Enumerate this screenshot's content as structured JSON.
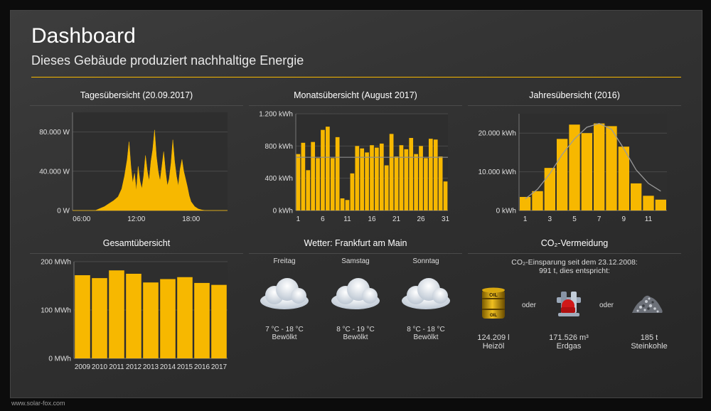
{
  "header": {
    "title": "Dashboard",
    "subtitle": "Dieses Gebäude produziert nachhaltige Energie"
  },
  "footer": {
    "url": "www.solar-fox.com"
  },
  "panels": {
    "daily": {
      "title": "Tagesübersicht (20.09.2017)"
    },
    "monthly": {
      "title": "Monatsübersicht (August 2017)"
    },
    "yearly": {
      "title": "Jahresübersicht (2016)"
    },
    "total": {
      "title": "Gesamtübersicht"
    },
    "weather": {
      "title": "Wetter: Frankfurt am Main"
    },
    "co2": {
      "title": "CO₂-Vermeidung"
    }
  },
  "chart_data": [
    {
      "id": "daily",
      "type": "area",
      "title": "Tagesübersicht (20.09.2017)",
      "color": "#f7b800",
      "x_ticks": [
        "06:00",
        "12:00",
        "18:00"
      ],
      "x_tick_hours": [
        6,
        12,
        18
      ],
      "xlim_hours": [
        5,
        22
      ],
      "y_ticks": [
        "0 W",
        "40.000 W",
        "80.000 W"
      ],
      "y_tick_values": [
        0,
        40000,
        80000
      ],
      "ylim": [
        0,
        100000
      ],
      "x_hours": [
        5,
        7.5,
        8,
        8.5,
        9,
        9.5,
        10,
        10.4,
        10.7,
        11,
        11.2,
        11.4,
        11.6,
        11.8,
        12,
        12.2,
        12.4,
        12.6,
        12.8,
        13,
        13.2,
        13.4,
        13.6,
        13.8,
        14,
        14.2,
        14.4,
        14.6,
        14.8,
        15,
        15.2,
        15.4,
        15.6,
        15.8,
        16,
        16.2,
        16.4,
        16.6,
        16.8,
        17,
        17.2,
        17.4,
        17.6,
        17.8,
        18,
        18.4,
        18.8,
        19.2,
        19.6,
        22
      ],
      "y_values": [
        0,
        0,
        2000,
        4000,
        7000,
        10000,
        14000,
        22000,
        35000,
        52000,
        70000,
        45000,
        28000,
        38000,
        20000,
        45000,
        30000,
        22000,
        35000,
        56000,
        40000,
        30000,
        50000,
        62000,
        82000,
        55000,
        40000,
        30000,
        45000,
        60000,
        40000,
        25000,
        32000,
        48000,
        72000,
        50000,
        35000,
        25000,
        42000,
        52000,
        40000,
        32000,
        24000,
        15000,
        9000,
        4000,
        1500,
        500,
        0,
        0
      ]
    },
    {
      "id": "monthly",
      "type": "bar",
      "title": "Monatsübersicht (August 2017)",
      "color": "#f7b800",
      "categories": [
        "1",
        "2",
        "3",
        "4",
        "5",
        "6",
        "7",
        "8",
        "9",
        "10",
        "11",
        "12",
        "13",
        "14",
        "15",
        "16",
        "17",
        "18",
        "19",
        "20",
        "21",
        "22",
        "23",
        "24",
        "25",
        "26",
        "27",
        "28",
        "29",
        "30",
        "31"
      ],
      "x_ticks": [
        "1",
        "6",
        "11",
        "16",
        "21",
        "26",
        "31"
      ],
      "values": [
        700,
        840,
        500,
        850,
        650,
        1000,
        1040,
        650,
        910,
        150,
        130,
        460,
        800,
        770,
        720,
        810,
        780,
        830,
        560,
        950,
        670,
        810,
        760,
        900,
        700,
        800,
        650,
        890,
        880,
        670,
        360
      ],
      "average": 660,
      "y_ticks": [
        "0 kWh",
        "400 kWh",
        "800 kWh",
        "1.200 kWh"
      ],
      "y_tick_values": [
        0,
        400,
        800,
        1200
      ],
      "ylim": [
        0,
        1200
      ]
    },
    {
      "id": "yearly",
      "type": "bar",
      "title": "Jahresübersicht (2016)",
      "color": "#f7b800",
      "categories": [
        "1",
        "2",
        "3",
        "4",
        "5",
        "6",
        "7",
        "8",
        "9",
        "10",
        "11",
        "12"
      ],
      "x_ticks": [
        "1",
        "3",
        "5",
        "7",
        "9",
        "11"
      ],
      "values": [
        3500,
        5000,
        11000,
        18500,
        22200,
        20000,
        22500,
        21800,
        16500,
        7000,
        3800,
        2800
      ],
      "reference": [
        3000,
        5500,
        9500,
        14500,
        18500,
        21500,
        22500,
        21000,
        16000,
        10500,
        7000,
        5000
      ],
      "y_ticks": [
        "0 kWh",
        "10.000 kWh",
        "20.000 kWh"
      ],
      "y_tick_values": [
        0,
        10000,
        20000
      ],
      "ylim": [
        0,
        25000
      ]
    },
    {
      "id": "total",
      "type": "bar",
      "title": "Gesamtübersicht",
      "color": "#f7b800",
      "categories": [
        "2009",
        "2010",
        "2011",
        "2012",
        "2013",
        "2014",
        "2015",
        "2016",
        "2017"
      ],
      "values": [
        172,
        166,
        182,
        175,
        157,
        164,
        168,
        156,
        152
      ],
      "y_ticks": [
        "0 MWh",
        "100 MWh",
        "200 MWh"
      ],
      "y_tick_values": [
        0,
        100,
        200
      ],
      "ylim": [
        0,
        200
      ]
    }
  ],
  "weather": {
    "days": [
      {
        "day": "Freitag",
        "temp": "7 °C - 18 °C",
        "condition": "Bewölkt",
        "icon": "cloud-icon"
      },
      {
        "day": "Samstag",
        "temp": "8 °C - 19 °C",
        "condition": "Bewölkt",
        "icon": "cloud-icon"
      },
      {
        "day": "Sonntag",
        "temp": "8 °C - 18 °C",
        "condition": "Bewölkt",
        "icon": "cloud-icon"
      }
    ]
  },
  "co2": {
    "line1": "CO₂-Einsparung seit dem 23.12.2008:",
    "line2": "991 t, dies entspricht:",
    "separator": "oder",
    "items": [
      {
        "value": "124.209 l",
        "label": "Heizöl",
        "icon": "oil-barrel-icon",
        "barrel_text_top": "OIL",
        "barrel_text_bottom": "OIL"
      },
      {
        "value": "171.526 m³",
        "label": "Erdgas",
        "icon": "gas-pipe-icon"
      },
      {
        "value": "185 t",
        "label": "Steinkohle",
        "icon": "coal-pile-icon"
      }
    ]
  },
  "colors": {
    "accent": "#f7b800",
    "background": "#333333",
    "text": "#ffffff"
  }
}
